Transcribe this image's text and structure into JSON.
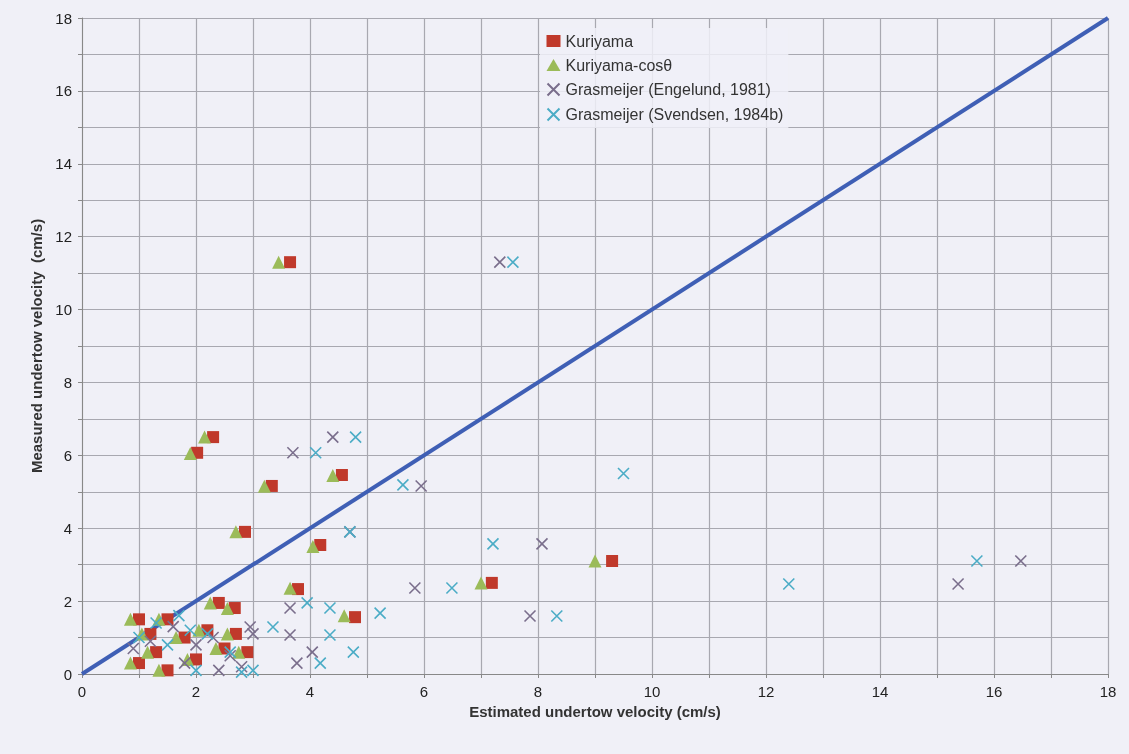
{
  "chart_data": {
    "type": "scatter",
    "xlabel": "Estimated undertow velocity (cm/s)",
    "ylabel": "Measured undertow velocity  (cm/s)",
    "xlim": [
      0,
      18
    ],
    "ylim": [
      0,
      18
    ],
    "xticks": [
      0,
      {
        "value": 1,
        "label": null
      },
      2,
      {
        "value": 3,
        "label": null
      },
      4,
      {
        "value": 5,
        "label": null
      },
      6,
      {
        "value": 7,
        "label": null
      },
      8,
      {
        "value": 9,
        "label": null
      },
      10,
      {
        "value": 11,
        "label": null
      },
      12,
      {
        "value": 13,
        "label": null
      },
      14,
      {
        "value": 15,
        "label": null
      },
      16,
      {
        "value": 17,
        "label": null
      },
      18
    ],
    "yticks": [
      0,
      {
        "value": 1,
        "label": null
      },
      2,
      {
        "value": 3,
        "label": null
      },
      4,
      {
        "value": 5,
        "label": null
      },
      6,
      {
        "value": 7,
        "label": null
      },
      8,
      {
        "value": 9,
        "label": null
      },
      10,
      {
        "value": 11,
        "label": null
      },
      12,
      {
        "value": 13,
        "label": null
      },
      14,
      {
        "value": 15,
        "label": null
      },
      16,
      {
        "value": 17,
        "label": null
      },
      18
    ],
    "grid": true,
    "legend": "top",
    "series": [
      {
        "name": "Kuriyama",
        "color": "#c0392b",
        "marker": "square",
        "x": [
          3.65,
          2.3,
          2.02,
          3.33,
          4.56,
          2.86,
          4.18,
          3.79,
          7.19,
          9.3,
          4.79,
          2.68,
          1.0,
          1.2,
          1.0,
          1.3,
          1.5,
          1.8,
          2.2,
          2.5,
          2.9,
          2.0,
          2.7,
          1.5,
          2.4
        ],
        "values": [
          11.3,
          6.5,
          6.07,
          5.16,
          5.46,
          3.9,
          3.54,
          2.33,
          2.5,
          3.1,
          1.56,
          1.81,
          1.5,
          1.1,
          0.3,
          0.6,
          0.1,
          1.0,
          1.2,
          0.7,
          0.6,
          0.4,
          1.1,
          1.5,
          1.95
        ]
      },
      {
        "name": "Kuriyama-cosθ",
        "color": "#9bbb59",
        "marker": "triangle",
        "x": [
          3.45,
          2.15,
          1.9,
          3.2,
          4.4,
          2.7,
          4.05,
          3.65,
          7.0,
          9.0,
          4.6,
          2.55,
          0.85,
          1.05,
          0.85,
          1.15,
          1.35,
          1.65,
          2.05,
          2.35,
          2.75,
          1.85,
          2.55,
          1.35,
          2.25
        ],
        "values": [
          11.3,
          6.5,
          6.05,
          5.15,
          5.45,
          3.9,
          3.5,
          2.35,
          2.5,
          3.1,
          1.6,
          1.8,
          1.5,
          1.1,
          0.3,
          0.6,
          0.1,
          1.0,
          1.2,
          0.7,
          0.6,
          0.4,
          1.1,
          1.5,
          1.95
        ]
      },
      {
        "name": "Grasmeijer (Engelund, 1981)",
        "color": "#7a6e8c",
        "marker": "cross",
        "x": [
          7.33,
          4.4,
          3.7,
          5.95,
          4.7,
          8.07,
          5.84,
          7.86,
          16.47,
          15.37,
          3.65,
          3.65,
          4.04,
          3.77,
          2.95,
          0.9,
          1.2,
          1.6,
          2.0,
          2.4,
          2.8,
          3.0,
          1.8,
          2.3,
          2.6
        ],
        "values": [
          11.3,
          6.5,
          6.07,
          5.16,
          3.9,
          3.57,
          2.36,
          1.59,
          3.1,
          2.47,
          1.81,
          1.07,
          0.6,
          0.3,
          1.29,
          0.7,
          0.9,
          1.3,
          0.8,
          0.1,
          0.2,
          1.1,
          0.3,
          1.0,
          0.5
        ]
      },
      {
        "name": "Grasmeijer (Svendsen, 1984b)",
        "color": "#4bacc6",
        "marker": "cross",
        "x": [
          7.56,
          4.8,
          4.1,
          5.63,
          4.7,
          7.21,
          6.49,
          8.33,
          9.5,
          15.7,
          12.4,
          5.23,
          4.35,
          3.95,
          4.35,
          4.76,
          4.18,
          3.35,
          1.0,
          1.3,
          1.7,
          1.5,
          2.0,
          2.2,
          2.6,
          3.0,
          2.8,
          1.9
        ],
        "values": [
          11.3,
          6.5,
          6.07,
          5.19,
          3.9,
          3.57,
          2.36,
          1.59,
          5.5,
          3.1,
          2.47,
          1.67,
          1.81,
          1.95,
          1.07,
          0.6,
          0.3,
          1.29,
          1.0,
          1.4,
          1.6,
          0.8,
          0.1,
          1.1,
          0.6,
          0.1,
          0.05,
          1.2
        ]
      },
      {
        "type": "line",
        "color": "#3f5fb5",
        "marker": "none",
        "line_style": "solid",
        "x": [
          0,
          18
        ],
        "values": [
          0,
          18
        ]
      }
    ]
  }
}
